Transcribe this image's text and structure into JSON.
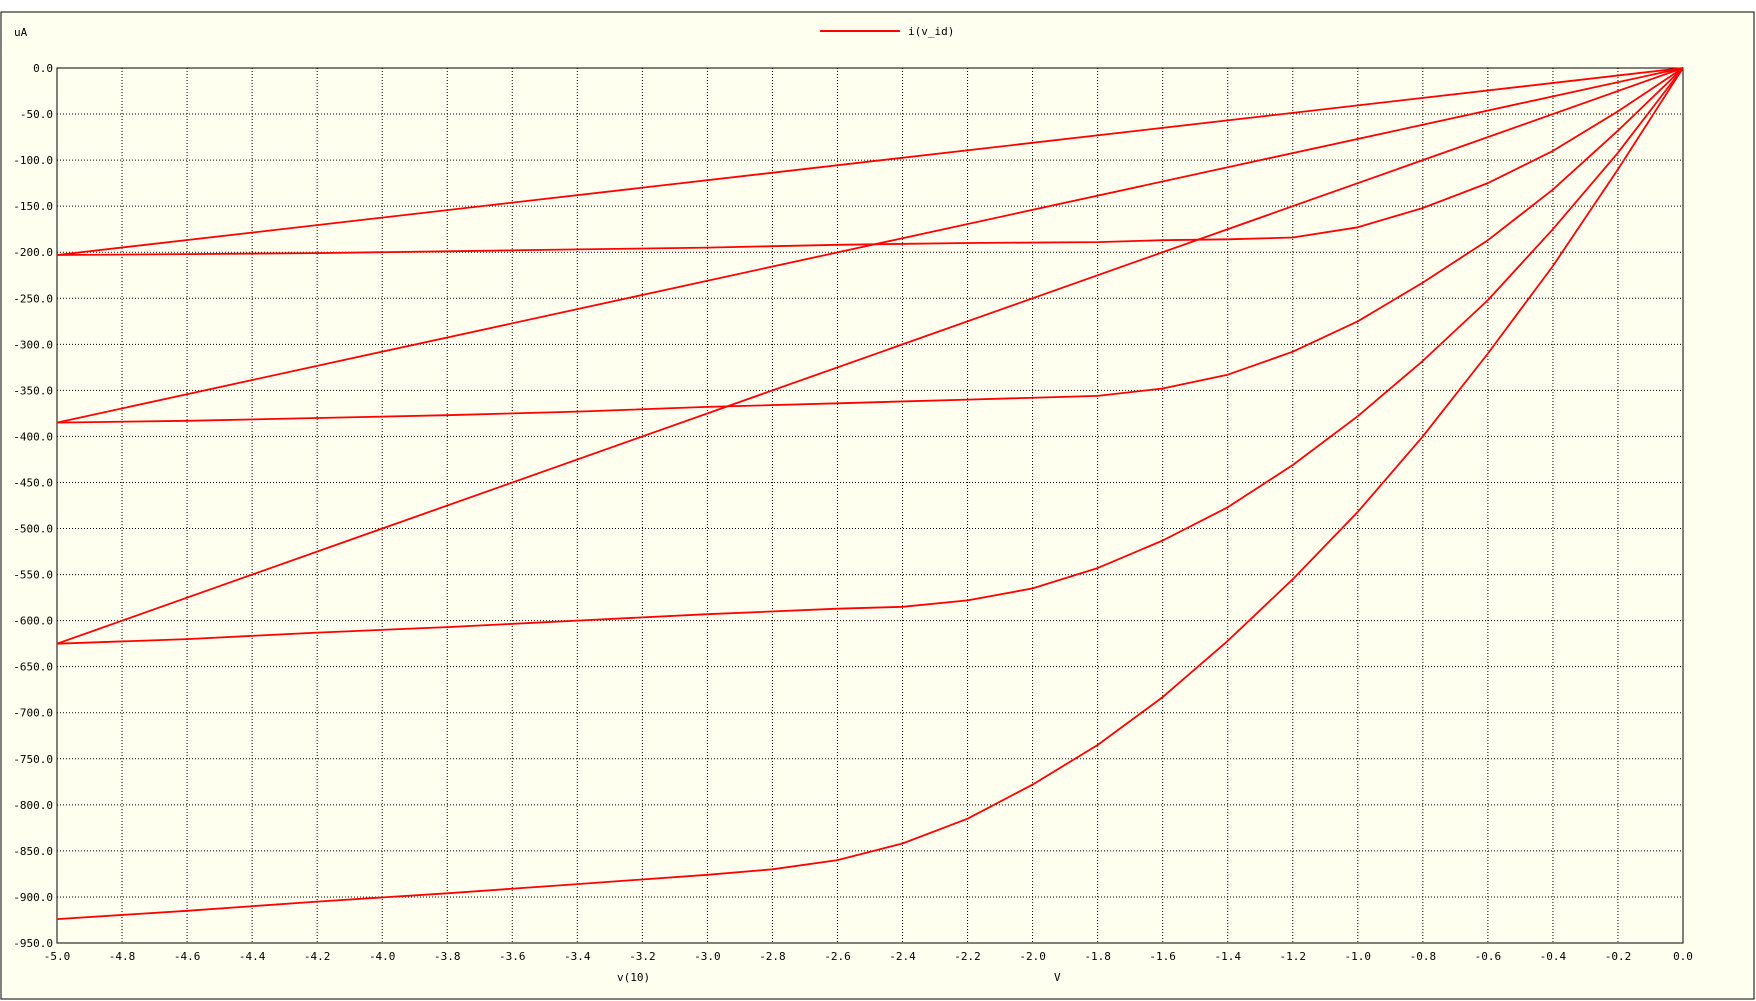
{
  "colors": {
    "background": "#fffff0",
    "frame": "#000000",
    "grid": "#000000",
    "trace": "#ff0000"
  },
  "chart_data": {
    "type": "line",
    "title": "",
    "ylabel": "uA",
    "xlabel": "v(10)",
    "xunit": "V",
    "legend": "i(v_id)",
    "legend_position": "top-center",
    "grid": true,
    "xlim": [
      -5.0,
      0.0
    ],
    "ylim": [
      -950,
      0
    ],
    "x_ticks": [
      -5.0,
      -4.8,
      -4.6,
      -4.4,
      -4.2,
      -4.0,
      -3.8,
      -3.6,
      -3.4,
      -3.2,
      -3.0,
      -2.8,
      -2.6,
      -2.4,
      -2.2,
      -2.0,
      -1.8,
      -1.6,
      -1.4,
      -1.2,
      -1.0,
      -0.8,
      -0.6,
      -0.4,
      -0.2,
      0.0
    ],
    "x_tick_labels": [
      "-5.0",
      "-4.8",
      "-4.6",
      "-4.4",
      "-4.2",
      "-4.0",
      "-3.8",
      "-3.6",
      "-3.4",
      "-3.2",
      "-3.0",
      "-2.8",
      "-2.6",
      "-2.4",
      "-2.2",
      "-2.0",
      "-1.8",
      "-1.6",
      "-1.4",
      "-1.2",
      "-1.0",
      "-0.8",
      "-0.6",
      "-0.4",
      "-0.2",
      "0.0"
    ],
    "y_ticks": [
      0,
      -50,
      -100,
      -150,
      -200,
      -250,
      -300,
      -350,
      -400,
      -450,
      -500,
      -550,
      -600,
      -650,
      -700,
      -750,
      -800,
      -850,
      -900,
      -950
    ],
    "y_tick_labels": [
      "0.0",
      "-50.0",
      "-100.0",
      "-150.0",
      "-200.0",
      "-250.0",
      "-300.0",
      "-350.0",
      "-400.0",
      "-450.0",
      "-500.0",
      "-550.0",
      "-600.0",
      "-650.0",
      "-700.0",
      "-750.0",
      "-800.0",
      "-850.0",
      "-900.0",
      "-950.0"
    ],
    "series": [
      {
        "values": [
          [
            -5.0,
            -924
          ],
          [
            -4.6,
            -915
          ],
          [
            -4.2,
            -905
          ],
          [
            -3.8,
            -896
          ],
          [
            -3.4,
            -886
          ],
          [
            -3.0,
            -876
          ],
          [
            -2.8,
            -870
          ],
          [
            -2.6,
            -860
          ],
          [
            -2.4,
            -842
          ],
          [
            -2.2,
            -815
          ],
          [
            -2.0,
            -778
          ],
          [
            -1.8,
            -735
          ],
          [
            -1.6,
            -683
          ],
          [
            -1.4,
            -622
          ],
          [
            -1.2,
            -555
          ],
          [
            -1.0,
            -482
          ],
          [
            -0.8,
            -400
          ],
          [
            -0.6,
            -310
          ],
          [
            -0.4,
            -215
          ],
          [
            -0.2,
            -110
          ],
          [
            0.0,
            0
          ]
        ]
      },
      {
        "values": [
          [
            -5.0,
            -625
          ],
          [
            -4.6,
            -620
          ],
          [
            -4.2,
            -613
          ],
          [
            -3.8,
            -607
          ],
          [
            -3.4,
            -600
          ],
          [
            -3.0,
            -593
          ],
          [
            -2.6,
            -587
          ],
          [
            -2.4,
            -585
          ],
          [
            -2.2,
            -578
          ],
          [
            -2.0,
            -565
          ],
          [
            -1.8,
            -543
          ],
          [
            -1.6,
            -513
          ],
          [
            -1.4,
            -477
          ],
          [
            -1.2,
            -431
          ],
          [
            -1.0,
            -378
          ],
          [
            -0.8,
            -318
          ],
          [
            -0.6,
            -252
          ],
          [
            -0.4,
            -175
          ],
          [
            -0.2,
            -92
          ],
          [
            0.0,
            0
          ]
        ]
      },
      {
        "values": [
          [
            -5.0,
            -385
          ],
          [
            -4.6,
            -383
          ],
          [
            -4.2,
            -380
          ],
          [
            -3.8,
            -377
          ],
          [
            -3.4,
            -373
          ],
          [
            -3.0,
            -368
          ],
          [
            -2.6,
            -364
          ],
          [
            -2.2,
            -360
          ],
          [
            -1.8,
            -356
          ],
          [
            -1.6,
            -348
          ],
          [
            -1.4,
            -333
          ],
          [
            -1.2,
            -308
          ],
          [
            -1.0,
            -275
          ],
          [
            -0.8,
            -233
          ],
          [
            -0.6,
            -187
          ],
          [
            -0.4,
            -132
          ],
          [
            -0.2,
            -68
          ],
          [
            0.0,
            0
          ]
        ]
      },
      {
        "values": [
          [
            -5.0,
            -203
          ],
          [
            -4.6,
            -202
          ],
          [
            -4.2,
            -201
          ],
          [
            -3.8,
            -199
          ],
          [
            -3.4,
            -197
          ],
          [
            -3.0,
            -195
          ],
          [
            -2.6,
            -192
          ],
          [
            -2.2,
            -190
          ],
          [
            -1.8,
            -189
          ],
          [
            -1.6,
            -187
          ],
          [
            -1.4,
            -186
          ],
          [
            -1.2,
            -184
          ],
          [
            -1.0,
            -173
          ],
          [
            -0.8,
            -152
          ],
          [
            -0.6,
            -125
          ],
          [
            -0.4,
            -90
          ],
          [
            -0.2,
            -47
          ],
          [
            0.0,
            0
          ]
        ]
      },
      {
        "values": [
          [
            -5.0,
            -625
          ],
          [
            0.0,
            0
          ]
        ]
      },
      {
        "values": [
          [
            -5.0,
            -385
          ],
          [
            0.0,
            0
          ]
        ]
      },
      {
        "values": [
          [
            -5.0,
            -203
          ],
          [
            0.0,
            0
          ]
        ]
      }
    ]
  }
}
